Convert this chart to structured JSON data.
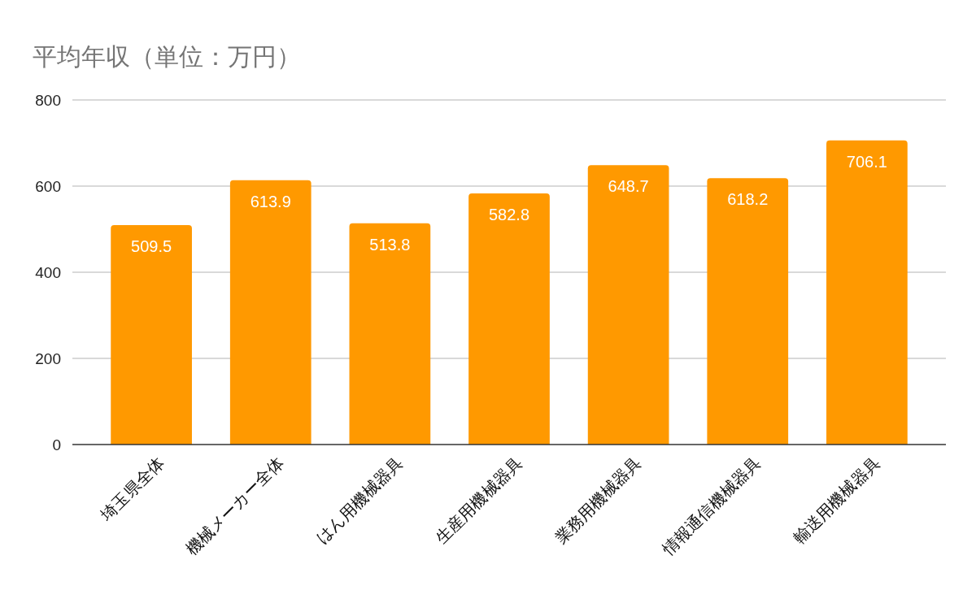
{
  "chart_data": {
    "type": "bar",
    "title": "平均年収（単位：万円）",
    "categories": [
      "埼玉県全体",
      "機械メーカー全体",
      "はん用機械器具",
      "生産用機械器具",
      "業務用機械器具",
      "情報通信機械器具",
      "輸送用機械器具"
    ],
    "values": [
      509.5,
      613.9,
      513.8,
      582.8,
      648.7,
      618.2,
      706.1
    ],
    "color": "#ff9900",
    "ylim": [
      0,
      800
    ],
    "yticks": [
      0,
      200,
      400,
      600,
      800
    ],
    "grid": "y",
    "data_labels": true
  }
}
